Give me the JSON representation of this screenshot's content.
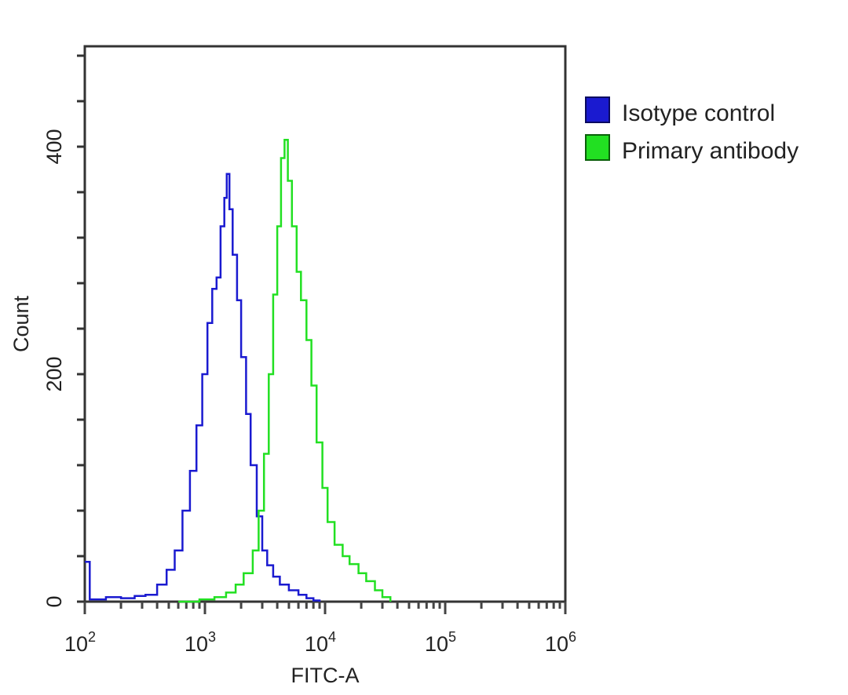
{
  "chart_data": {
    "type": "line",
    "subtype": "flow-cytometry-histogram",
    "title": "",
    "xlabel": "FITC-A",
    "ylabel": "Count",
    "x_scale": "log",
    "xlim": [
      100,
      1000000
    ],
    "ylim": [
      0,
      480
    ],
    "x_ticks": [
      {
        "value": 100,
        "base": "10",
        "exp": "2"
      },
      {
        "value": 1000,
        "base": "10",
        "exp": "3"
      },
      {
        "value": 10000,
        "base": "10",
        "exp": "4"
      },
      {
        "value": 100000,
        "base": "10",
        "exp": "5"
      },
      {
        "value": 1000000,
        "base": "10",
        "exp": "6"
      }
    ],
    "y_ticks": [
      0,
      200,
      400
    ],
    "y_minor_step": 40,
    "grid": false,
    "legend_position": "right-outside",
    "legend": [
      {
        "label": "Isotype control",
        "color": "#1a1ad0"
      },
      {
        "label": "Primary antibody",
        "color": "#22e022"
      }
    ],
    "series": [
      {
        "name": "Isotype control",
        "color": "#1a1ad0",
        "x": [
          100,
          110,
          150,
          200,
          260,
          320,
          400,
          480,
          560,
          650,
          750,
          850,
          950,
          1050,
          1150,
          1250,
          1350,
          1450,
          1520,
          1600,
          1700,
          1850,
          2000,
          2200,
          2400,
          2700,
          3000,
          3300,
          3700,
          4200,
          5000,
          6000,
          7000,
          8000,
          9000
        ],
        "values": [
          35,
          2,
          4,
          3,
          5,
          6,
          15,
          28,
          45,
          80,
          115,
          155,
          200,
          245,
          275,
          285,
          330,
          355,
          376,
          345,
          305,
          265,
          215,
          165,
          120,
          75,
          45,
          32,
          22,
          15,
          10,
          6,
          3,
          1,
          0
        ]
      },
      {
        "name": "Primary antibody",
        "color": "#22e022",
        "x": [
          600,
          900,
          1200,
          1500,
          1800,
          2100,
          2500,
          2800,
          3100,
          3400,
          3700,
          4000,
          4300,
          4600,
          4900,
          5300,
          5800,
          6300,
          7000,
          7700,
          8500,
          9500,
          10500,
          12000,
          14000,
          16000,
          19000,
          22000,
          26000,
          30000,
          35000
        ],
        "values": [
          0,
          2,
          4,
          8,
          15,
          25,
          45,
          80,
          130,
          200,
          270,
          330,
          390,
          406,
          370,
          330,
          290,
          265,
          230,
          190,
          140,
          100,
          70,
          50,
          40,
          33,
          25,
          18,
          10,
          4,
          0
        ]
      }
    ]
  }
}
